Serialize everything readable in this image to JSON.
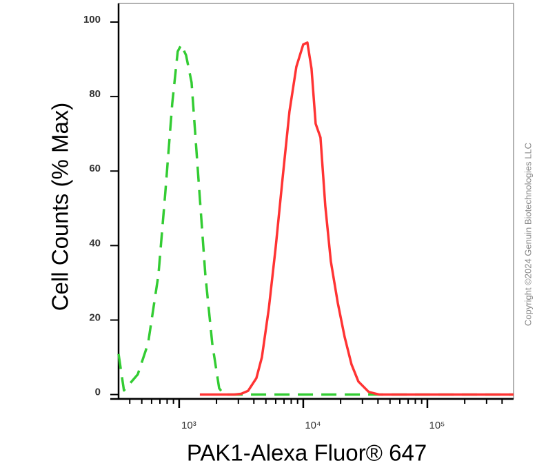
{
  "chart_data": {
    "type": "line",
    "xlabel": "PAK1-Alexa Fluor® 647",
    "ylabel": "Cell Counts (% Max)",
    "annotation": "Copyright ©2024 Genuin Biotechnologies LLC",
    "xscale": "log",
    "xlim": [
      325,
      495000
    ],
    "ylim": [
      -1,
      105
    ],
    "xticks": [
      {
        "value": 1000,
        "label": "10³"
      },
      {
        "value": 10000,
        "label": "10⁴"
      },
      {
        "value": 100000,
        "label": "10⁵"
      }
    ],
    "x_minor_ticks": [
      400,
      500,
      600,
      700,
      800,
      900,
      2000,
      3000,
      4000,
      5000,
      6000,
      7000,
      8000,
      9000,
      20000,
      30000,
      40000,
      50000,
      60000,
      70000,
      80000,
      90000,
      200000,
      300000,
      400000
    ],
    "yticks": [
      0,
      20,
      40,
      60,
      80,
      100
    ],
    "series": [
      {
        "color": "#33cc33",
        "line_style": "dashed",
        "x": [
          325,
          359,
          464,
          562,
          681,
          774,
          880,
          974,
          1039,
          1137,
          1259,
          1431,
          1626,
          1848,
          2099,
          2297,
          495000
        ],
        "values": [
          10.9,
          1.1,
          5.4,
          13.7,
          32.1,
          54.2,
          78.2,
          92.1,
          93.9,
          91.1,
          83.8,
          57.9,
          32.1,
          13.7,
          1.7,
          0,
          0
        ]
      },
      {
        "color": "#ff3333",
        "line_style": "solid",
        "x": [
          1468,
          2783,
          3162,
          3594,
          4190,
          4642,
          5275,
          5995,
          6813,
          7743,
          8799,
          10000,
          10800,
          11660,
          12590,
          13770,
          15060,
          16680,
          18960,
          21540,
          24480,
          27830,
          33700,
          40820,
          495000
        ],
        "values": [
          0,
          0,
          0.2,
          1,
          4.4,
          10,
          23,
          39.5,
          58,
          76,
          88,
          94,
          94.5,
          87.5,
          72.7,
          69,
          50.6,
          35.8,
          24.7,
          15.5,
          8.1,
          3.5,
          0.7,
          0,
          0
        ]
      }
    ]
  }
}
